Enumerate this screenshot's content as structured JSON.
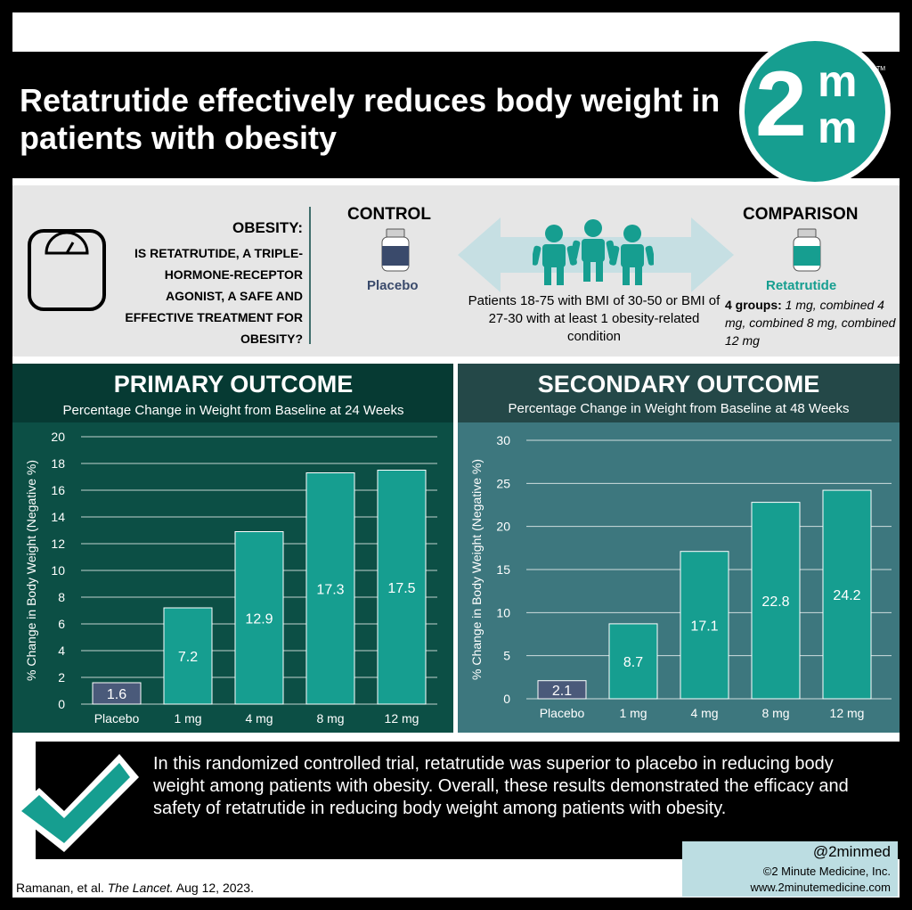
{
  "header": {
    "title": "Retatrutide effectively reduces body weight in patients with obesity",
    "logo_digit": "2",
    "logo_letter_top": "m",
    "logo_letter_bottom": "m",
    "logo_tm": "TM"
  },
  "design": {
    "question_title": "OBESITY:",
    "question_text": "IS RETATRUTIDE, A TRIPLE-HORMONE-RECEPTOR AGONIST, A SAFE AND EFFECTIVE TREATMENT FOR OBESITY?",
    "control_label": "CONTROL",
    "placebo_label": "Placebo",
    "population": "Patients 18-75 with BMI of 30-50 or BMI of 27-30 with at least 1 obesity-related condition",
    "comparison_label": "COMPARISON",
    "treatment_label": "Retatrutide",
    "groups_prefix": "4 groups:",
    "groups_detail": " 1 mg, combined 4 mg, combined 8 mg, combined 12 mg"
  },
  "colors": {
    "teal": "#169e90",
    "placebo_bar": "#4a5a7a",
    "primary_bg": "#0c4f45",
    "secondary_bg": "#3d777e"
  },
  "chart_data": [
    {
      "type": "bar",
      "title": "PRIMARY OUTCOME",
      "subtitle": "Percentage Change in Weight from Baseline at 24 Weeks",
      "ylabel": "% Change in Body Weight (Negative %)",
      "categories": [
        "Placebo",
        "1 mg",
        "4 mg",
        "8 mg",
        "12 mg"
      ],
      "values": [
        1.6,
        7.2,
        12.9,
        17.3,
        17.5
      ],
      "value_labels": [
        "1.6",
        "7.2",
        "12.9",
        "17.3",
        "17.5"
      ],
      "ylim": [
        0,
        20
      ],
      "yticks": [
        0,
        2,
        4,
        6,
        8,
        10,
        12,
        14,
        16,
        18,
        20
      ],
      "grid": true
    },
    {
      "type": "bar",
      "title": "SECONDARY OUTCOME",
      "subtitle": "Percentage Change in Weight from Baseline at 48 Weeks",
      "ylabel": "% Change in Body Weight (Negative %)",
      "categories": [
        "Placebo",
        "1 mg",
        "4 mg",
        "8 mg",
        "12 mg"
      ],
      "values": [
        2.1,
        8.7,
        17.1,
        22.8,
        24.2
      ],
      "value_labels": [
        "2.1",
        "8.7",
        "17.1",
        "22.8",
        "24.2"
      ],
      "ylim": [
        0,
        30
      ],
      "yticks": [
        0,
        5,
        10,
        15,
        20,
        25,
        30
      ],
      "grid": true
    }
  ],
  "conclusion": "In this randomized controlled trial, retatrutide was superior to placebo in reducing body weight among patients with obesity. Overall, these results demonstrated the efficacy and safety of retatrutide in reducing body weight among patients with obesity.",
  "footer": {
    "citation_authors": "Ramanan, et al. ",
    "citation_journal": "The Lancet.",
    "citation_date": " Aug 12, 2023.",
    "handle": "@2minmed",
    "copyright": "©2 Minute Medicine, Inc.",
    "url": "www.2minutemedicine.com"
  }
}
